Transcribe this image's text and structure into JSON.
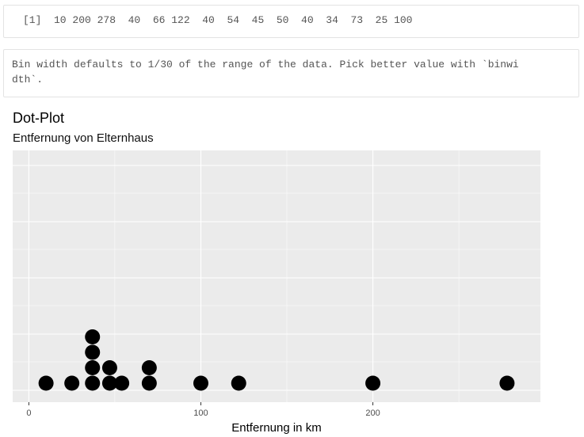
{
  "console": {
    "output_line": "[1]  10 200 278  40  66 122  40  54  45  50  40  34  73  25 100",
    "message_line1": "Bin width defaults to 1/30 of the range of the data. Pick better value with `binwi",
    "message_line2": "dth`."
  },
  "chart_data": {
    "type": "scatter",
    "title": "Dot-Plot",
    "subtitle": "Entfernung von Elternhaus",
    "xlabel": "Entfernung in km",
    "ylabel": "",
    "xlim": [
      -9.4,
      297.4
    ],
    "x_ticks": [
      0,
      100,
      200
    ],
    "x_tick_labels": [
      "0",
      "100",
      "200"
    ],
    "grid": true,
    "legend": "none",
    "colors": {
      "panel": "#ebebeb",
      "grid": "#ffffff",
      "dot": "#000000"
    },
    "stacks": [
      {
        "x": 10,
        "count": 1
      },
      {
        "x": 25,
        "count": 1
      },
      {
        "x": 37,
        "count": 4
      },
      {
        "x": 47,
        "count": 2
      },
      {
        "x": 54,
        "count": 1
      },
      {
        "x": 70,
        "count": 2
      },
      {
        "x": 100,
        "count": 1
      },
      {
        "x": 122,
        "count": 1
      },
      {
        "x": 200,
        "count": 1
      },
      {
        "x": 278,
        "count": 1
      }
    ]
  }
}
